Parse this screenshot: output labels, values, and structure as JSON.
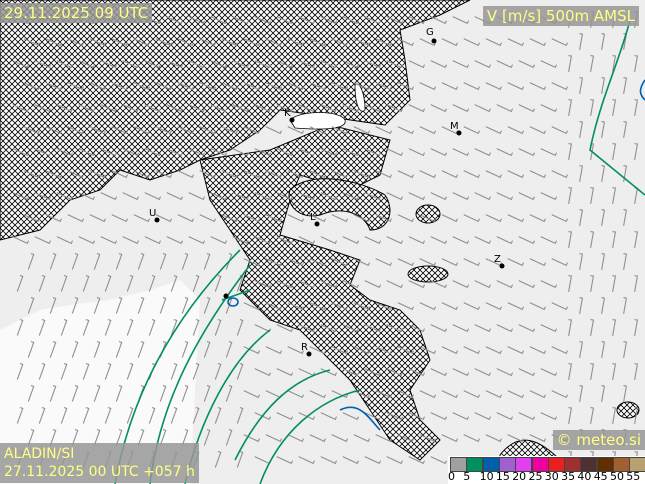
{
  "header": {
    "valid_time": "29.11.2025 09 UTC",
    "field": "V [m/s] 500m AMSL"
  },
  "model": {
    "name": "ALADIN/SI",
    "run": "27.11.2025 00 UTC +057 h"
  },
  "brand": "© meteo.si",
  "legend": {
    "unit": "m/s",
    "ticks": [
      "0",
      "5",
      "10",
      "15",
      "20",
      "25",
      "30",
      "35",
      "40",
      "45",
      "50",
      "55"
    ],
    "colors": [
      "#a0a0a0",
      "#009060",
      "#0060b0",
      "#a060d0",
      "#e040f0",
      "#f000a0",
      "#e82020",
      "#a03030",
      "#503030",
      "#603000",
      "#a06030",
      "#b8a070"
    ]
  },
  "cities": [
    {
      "label": "G"
    },
    {
      "label": "K"
    },
    {
      "label": "M"
    },
    {
      "label": "U"
    },
    {
      "label": "L"
    },
    {
      "label": "Z"
    },
    {
      "label": "R"
    }
  ]
}
